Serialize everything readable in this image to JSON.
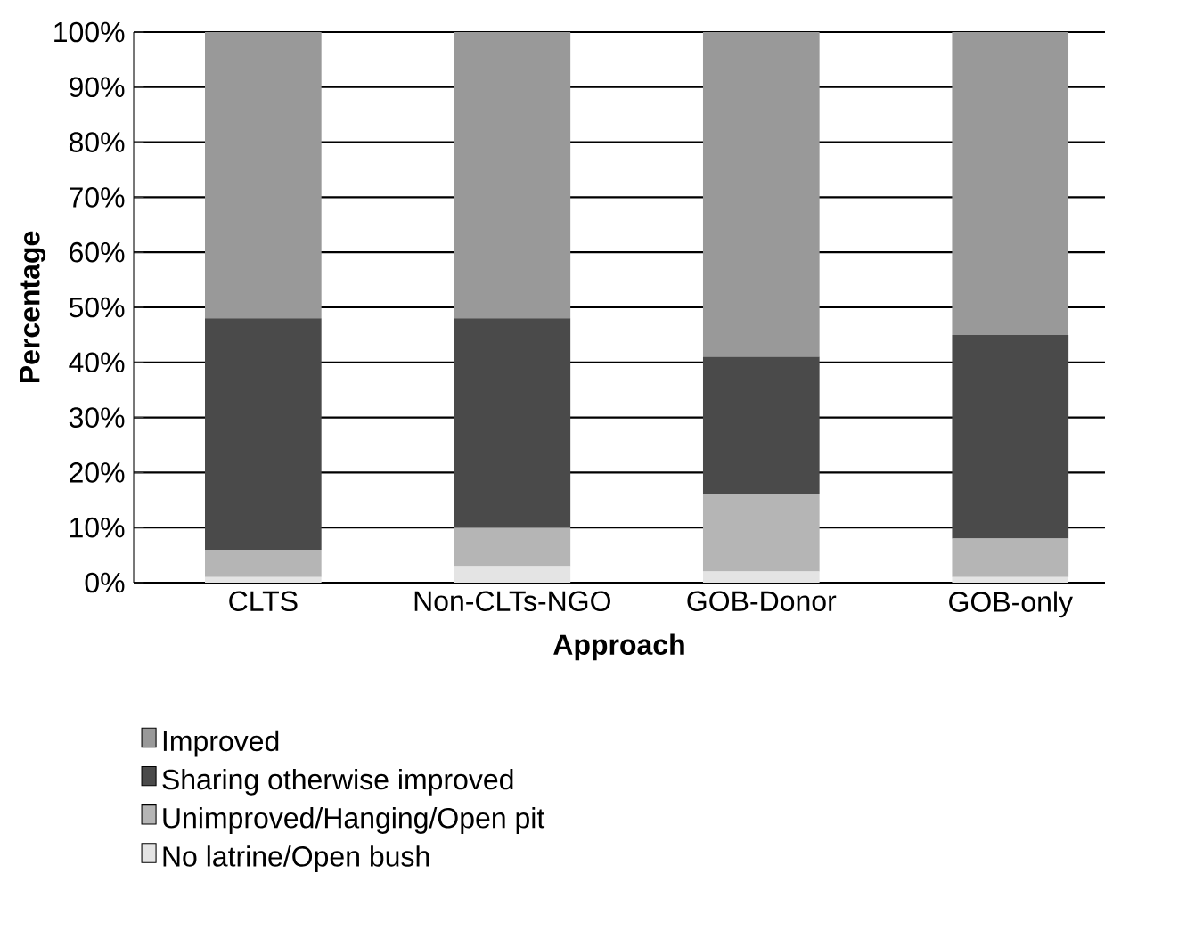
{
  "chart_data": {
    "type": "bar",
    "stacked": true,
    "xlabel": "Approach",
    "ylabel": "Percentage",
    "categories": [
      "CLTS",
      "Non-CLTs-NGO",
      "GOB-Donor",
      "GOB-only"
    ],
    "series": [
      {
        "name": "No latrine/Open bush",
        "color": "#e4e4e4",
        "values": [
          1,
          3,
          2,
          1
        ]
      },
      {
        "name": "Unimproved/Hanging/Open pit",
        "color": "#b5b5b5",
        "values": [
          5,
          7,
          14,
          7
        ]
      },
      {
        "name": "Sharing otherwise improved",
        "color": "#4a4a4a",
        "values": [
          42,
          38,
          25,
          37
        ]
      },
      {
        "name": "Improved",
        "color": "#999999",
        "values": [
          52,
          52,
          59,
          55
        ]
      }
    ],
    "ylim": [
      0,
      100
    ],
    "yticks": [
      {
        "value": 0,
        "label": "0%"
      },
      {
        "value": 10,
        "label": "10%"
      },
      {
        "value": 20,
        "label": "20%"
      },
      {
        "value": 30,
        "label": "30%"
      },
      {
        "value": 40,
        "label": "40%"
      },
      {
        "value": 50,
        "label": "50%"
      },
      {
        "value": 60,
        "label": "60%"
      },
      {
        "value": 70,
        "label": "70%"
      },
      {
        "value": 80,
        "label": "80%"
      },
      {
        "value": 90,
        "label": "90%"
      },
      {
        "value": 100,
        "label": "100%"
      }
    ],
    "grid": "y",
    "legend": "bottom"
  }
}
